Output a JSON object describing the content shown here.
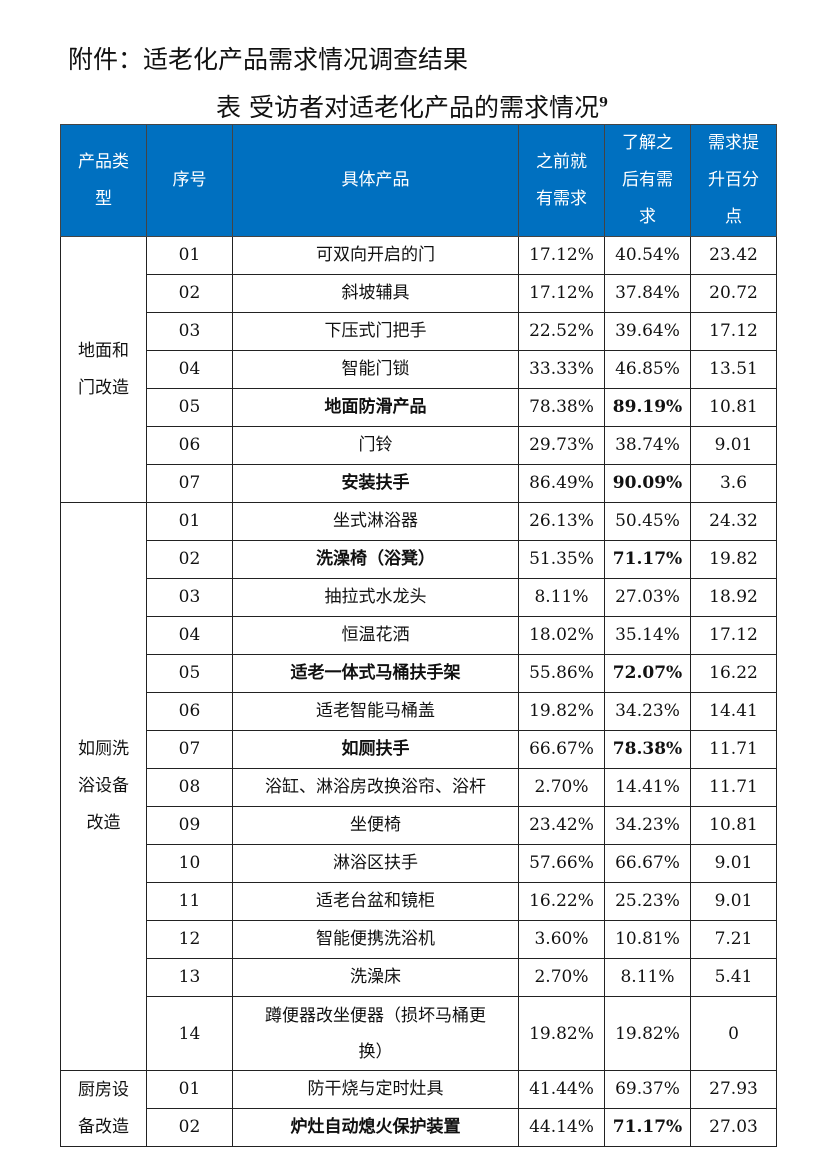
{
  "attachment_title": "附件：适老化产品需求情况调查结果",
  "table_caption": "表 受访者对适老化产品的需求情况",
  "caption_footnote": "9",
  "header_color": "#0070c0",
  "columns": [
    "产品类型",
    "序号",
    "具体产品",
    "之前就有需求",
    "了解之后有需求",
    "需求提升百分点"
  ],
  "groups": [
    {
      "category": "地面和门改造",
      "rows": [
        {
          "no": "01",
          "product": "可双向开启的门",
          "before": "17.12%",
          "after": "40.54%",
          "increase": "23.42",
          "bold": false
        },
        {
          "no": "02",
          "product": "斜坡辅具",
          "before": "17.12%",
          "after": "37.84%",
          "increase": "20.72",
          "bold": false
        },
        {
          "no": "03",
          "product": "下压式门把手",
          "before": "22.52%",
          "after": "39.64%",
          "increase": "17.12",
          "bold": false
        },
        {
          "no": "04",
          "product": "智能门锁",
          "before": "33.33%",
          "after": "46.85%",
          "increase": "13.51",
          "bold": false
        },
        {
          "no": "05",
          "product": "地面防滑产品",
          "before": "78.38%",
          "after": "89.19%",
          "increase": "10.81",
          "bold": true
        },
        {
          "no": "06",
          "product": "门铃",
          "before": "29.73%",
          "after": "38.74%",
          "increase": "9.01",
          "bold": false
        },
        {
          "no": "07",
          "product": "安装扶手",
          "before": "86.49%",
          "after": "90.09%",
          "increase": "3.6",
          "bold": true
        }
      ]
    },
    {
      "category": "如厕洗浴设备改造",
      "rows": [
        {
          "no": "01",
          "product": "坐式淋浴器",
          "before": "26.13%",
          "after": "50.45%",
          "increase": "24.32",
          "bold": false
        },
        {
          "no": "02",
          "product": "洗澡椅（浴凳）",
          "before": "51.35%",
          "after": "71.17%",
          "increase": "19.82",
          "bold": true
        },
        {
          "no": "03",
          "product": "抽拉式水龙头",
          "before": "8.11%",
          "after": "27.03%",
          "increase": "18.92",
          "bold": false
        },
        {
          "no": "04",
          "product": "恒温花洒",
          "before": "18.02%",
          "after": "35.14%",
          "increase": "17.12",
          "bold": false
        },
        {
          "no": "05",
          "product": "适老一体式马桶扶手架",
          "before": "55.86%",
          "after": "72.07%",
          "increase": "16.22",
          "bold": true
        },
        {
          "no": "06",
          "product": "适老智能马桶盖",
          "before": "19.82%",
          "after": "34.23%",
          "increase": "14.41",
          "bold": false
        },
        {
          "no": "07",
          "product": "如厕扶手",
          "before": "66.67%",
          "after": "78.38%",
          "increase": "11.71",
          "bold": true
        },
        {
          "no": "08",
          "product": "浴缸、淋浴房改换浴帘、浴杆",
          "before": "2.70%",
          "after": "14.41%",
          "increase": "11.71",
          "bold": false
        },
        {
          "no": "09",
          "product": "坐便椅",
          "before": "23.42%",
          "after": "34.23%",
          "increase": "10.81",
          "bold": false
        },
        {
          "no": "10",
          "product": "淋浴区扶手",
          "before": "57.66%",
          "after": "66.67%",
          "increase": "9.01",
          "bold": false
        },
        {
          "no": "11",
          "product": "适老台盆和镜柜",
          "before": "16.22%",
          "after": "25.23%",
          "increase": "9.01",
          "bold": false
        },
        {
          "no": "12",
          "product": "智能便携洗浴机",
          "before": "3.60%",
          "after": "10.81%",
          "increase": "7.21",
          "bold": false
        },
        {
          "no": "13",
          "product": "洗澡床",
          "before": "2.70%",
          "after": "8.11%",
          "increase": "5.41",
          "bold": false
        },
        {
          "no": "14",
          "product": "蹲便器改坐便器（损坏马桶更换）",
          "before": "19.82%",
          "after": "19.82%",
          "increase": "0",
          "bold": false,
          "tall": true
        }
      ]
    },
    {
      "category": "厨房设备改造",
      "rows": [
        {
          "no": "01",
          "product": "防干烧与定时灶具",
          "before": "41.44%",
          "after": "69.37%",
          "increase": "27.93",
          "bold": false
        },
        {
          "no": "02",
          "product": "炉灶自动熄火保护装置",
          "before": "44.14%",
          "after": "71.17%",
          "increase": "27.03",
          "bold": true
        }
      ]
    }
  ]
}
